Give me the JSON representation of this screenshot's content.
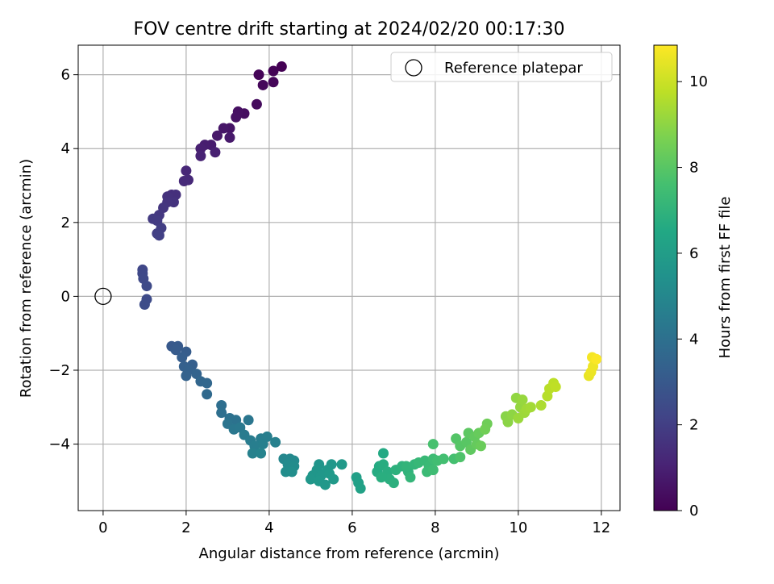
{
  "chart_data": {
    "type": "scatter",
    "title": "FOV centre drift starting at 2024/02/20 00:17:30",
    "xlabel": "Angular distance from reference (arcmin)",
    "ylabel": "Rotation from reference (arcmin)",
    "xlim": [
      -0.6,
      12.45
    ],
    "ylim": [
      -5.8,
      6.8
    ],
    "xticks": [
      0,
      2,
      4,
      6,
      8,
      10,
      12
    ],
    "yticks": [
      -4,
      -2,
      0,
      2,
      4,
      6
    ],
    "grid": true,
    "legend": {
      "position": "top-right",
      "entries": [
        "Reference platepar"
      ]
    },
    "reference_point": {
      "x": 0,
      "y": 0,
      "label": "Reference platepar"
    },
    "colorbar": {
      "label": "Hours from first FF file",
      "colormap": "viridis",
      "range": [
        0,
        10.85
      ],
      "ticks": [
        0,
        2,
        4,
        6,
        8,
        10
      ]
    },
    "point_color_variable": "hours",
    "points": [
      {
        "x": 4.3,
        "y": 6.22,
        "hours": 0.0
      },
      {
        "x": 4.1,
        "y": 6.1,
        "hours": 0.05
      },
      {
        "x": 3.75,
        "y": 6.0,
        "hours": 0.1
      },
      {
        "x": 4.1,
        "y": 5.8,
        "hours": 0.15
      },
      {
        "x": 3.85,
        "y": 5.72,
        "hours": 0.2
      },
      {
        "x": 3.7,
        "y": 5.2,
        "hours": 0.3
      },
      {
        "x": 3.4,
        "y": 4.95,
        "hours": 0.4
      },
      {
        "x": 3.25,
        "y": 5.0,
        "hours": 0.45
      },
      {
        "x": 3.2,
        "y": 4.85,
        "hours": 0.5
      },
      {
        "x": 3.05,
        "y": 4.55,
        "hours": 0.6
      },
      {
        "x": 2.9,
        "y": 4.55,
        "hours": 0.65
      },
      {
        "x": 2.75,
        "y": 4.35,
        "hours": 0.7
      },
      {
        "x": 3.05,
        "y": 4.3,
        "hours": 0.75
      },
      {
        "x": 2.6,
        "y": 4.1,
        "hours": 0.85
      },
      {
        "x": 2.45,
        "y": 4.1,
        "hours": 0.9
      },
      {
        "x": 2.35,
        "y": 4.0,
        "hours": 0.95
      },
      {
        "x": 2.7,
        "y": 3.9,
        "hours": 1.0
      },
      {
        "x": 2.35,
        "y": 3.8,
        "hours": 1.05
      },
      {
        "x": 2.0,
        "y": 3.4,
        "hours": 1.2
      },
      {
        "x": 2.05,
        "y": 3.15,
        "hours": 1.25
      },
      {
        "x": 1.95,
        "y": 3.12,
        "hours": 1.3
      },
      {
        "x": 1.65,
        "y": 2.75,
        "hours": 1.45
      },
      {
        "x": 1.75,
        "y": 2.75,
        "hours": 1.5
      },
      {
        "x": 1.55,
        "y": 2.7,
        "hours": 1.55
      },
      {
        "x": 1.7,
        "y": 2.55,
        "hours": 1.6
      },
      {
        "x": 1.55,
        "y": 2.55,
        "hours": 1.62
      },
      {
        "x": 1.45,
        "y": 2.4,
        "hours": 1.7
      },
      {
        "x": 1.35,
        "y": 2.2,
        "hours": 1.78
      },
      {
        "x": 1.2,
        "y": 2.1,
        "hours": 1.85
      },
      {
        "x": 1.3,
        "y": 2.05,
        "hours": 1.88
      },
      {
        "x": 1.4,
        "y": 1.85,
        "hours": 1.95
      },
      {
        "x": 1.3,
        "y": 1.7,
        "hours": 2.0
      },
      {
        "x": 1.35,
        "y": 1.65,
        "hours": 2.05
      },
      {
        "x": 0.95,
        "y": 0.72,
        "hours": 2.3
      },
      {
        "x": 0.95,
        "y": 0.62,
        "hours": 2.33
      },
      {
        "x": 0.97,
        "y": 0.48,
        "hours": 2.36
      },
      {
        "x": 1.05,
        "y": 0.28,
        "hours": 2.4
      },
      {
        "x": 1.05,
        "y": -0.08,
        "hours": 2.45
      },
      {
        "x": 1.0,
        "y": -0.22,
        "hours": 2.5
      },
      {
        "x": 1.65,
        "y": -1.35,
        "hours": 3.0
      },
      {
        "x": 1.8,
        "y": -1.35,
        "hours": 3.05
      },
      {
        "x": 1.75,
        "y": -1.45,
        "hours": 3.1
      },
      {
        "x": 2.0,
        "y": -1.5,
        "hours": 3.15
      },
      {
        "x": 1.9,
        "y": -1.65,
        "hours": 3.2
      },
      {
        "x": 2.15,
        "y": -1.85,
        "hours": 3.25
      },
      {
        "x": 1.95,
        "y": -1.9,
        "hours": 3.3
      },
      {
        "x": 2.05,
        "y": -2.0,
        "hours": 3.35
      },
      {
        "x": 2.0,
        "y": -2.15,
        "hours": 3.4
      },
      {
        "x": 2.25,
        "y": -2.1,
        "hours": 3.45
      },
      {
        "x": 2.35,
        "y": -2.3,
        "hours": 3.55
      },
      {
        "x": 2.5,
        "y": -2.35,
        "hours": 3.6
      },
      {
        "x": 2.5,
        "y": -2.65,
        "hours": 3.7
      },
      {
        "x": 2.85,
        "y": -2.95,
        "hours": 3.9
      },
      {
        "x": 2.85,
        "y": -3.15,
        "hours": 3.95
      },
      {
        "x": 3.05,
        "y": -3.3,
        "hours": 4.05
      },
      {
        "x": 3.2,
        "y": -3.35,
        "hours": 4.1
      },
      {
        "x": 3.0,
        "y": -3.45,
        "hours": 4.15
      },
      {
        "x": 3.5,
        "y": -3.35,
        "hours": 4.25
      },
      {
        "x": 3.15,
        "y": -3.6,
        "hours": 4.3
      },
      {
        "x": 3.3,
        "y": -3.55,
        "hours": 4.35
      },
      {
        "x": 3.4,
        "y": -3.75,
        "hours": 4.45
      },
      {
        "x": 3.55,
        "y": -3.9,
        "hours": 4.5
      },
      {
        "x": 3.8,
        "y": -3.85,
        "hours": 4.55
      },
      {
        "x": 3.65,
        "y": -4.05,
        "hours": 4.6
      },
      {
        "x": 3.95,
        "y": -3.8,
        "hours": 4.62
      },
      {
        "x": 3.85,
        "y": -4.0,
        "hours": 4.65
      },
      {
        "x": 4.15,
        "y": -3.95,
        "hours": 4.7
      },
      {
        "x": 3.6,
        "y": -4.25,
        "hours": 4.75
      },
      {
        "x": 3.8,
        "y": -4.25,
        "hours": 4.8
      },
      {
        "x": 4.35,
        "y": -4.4,
        "hours": 5.0
      },
      {
        "x": 4.5,
        "y": -4.4,
        "hours": 5.05
      },
      {
        "x": 4.6,
        "y": -4.45,
        "hours": 5.1
      },
      {
        "x": 4.45,
        "y": -4.55,
        "hours": 5.15
      },
      {
        "x": 4.6,
        "y": -4.6,
        "hours": 5.2
      },
      {
        "x": 4.4,
        "y": -4.75,
        "hours": 5.25
      },
      {
        "x": 4.55,
        "y": -4.75,
        "hours": 5.3
      },
      {
        "x": 5.2,
        "y": -4.55,
        "hours": 5.6
      },
      {
        "x": 5.5,
        "y": -4.55,
        "hours": 5.7
      },
      {
        "x": 5.75,
        "y": -4.55,
        "hours": 5.8
      },
      {
        "x": 5.15,
        "y": -4.7,
        "hours": 5.65
      },
      {
        "x": 5.4,
        "y": -4.7,
        "hours": 5.75
      },
      {
        "x": 5.05,
        "y": -4.85,
        "hours": 5.68
      },
      {
        "x": 5.25,
        "y": -4.85,
        "hours": 5.72
      },
      {
        "x": 5.45,
        "y": -4.8,
        "hours": 5.78
      },
      {
        "x": 5.0,
        "y": -4.95,
        "hours": 5.7
      },
      {
        "x": 5.2,
        "y": -5.0,
        "hours": 5.74
      },
      {
        "x": 5.35,
        "y": -5.1,
        "hours": 5.76
      },
      {
        "x": 5.55,
        "y": -4.95,
        "hours": 5.82
      },
      {
        "x": 6.1,
        "y": -4.9,
        "hours": 6.1
      },
      {
        "x": 6.15,
        "y": -5.05,
        "hours": 6.15
      },
      {
        "x": 6.2,
        "y": -5.2,
        "hours": 6.2
      },
      {
        "x": 6.75,
        "y": -4.25,
        "hours": 6.55
      },
      {
        "x": 6.65,
        "y": -4.6,
        "hours": 6.6
      },
      {
        "x": 6.6,
        "y": -4.75,
        "hours": 6.65
      },
      {
        "x": 6.75,
        "y": -4.55,
        "hours": 6.7
      },
      {
        "x": 6.85,
        "y": -4.75,
        "hours": 6.75
      },
      {
        "x": 6.9,
        "y": -4.95,
        "hours": 6.8
      },
      {
        "x": 6.7,
        "y": -4.9,
        "hours": 6.78
      },
      {
        "x": 7.0,
        "y": -5.05,
        "hours": 6.85
      },
      {
        "x": 7.05,
        "y": -4.7,
        "hours": 6.9
      },
      {
        "x": 7.2,
        "y": -4.6,
        "hours": 6.95
      },
      {
        "x": 7.35,
        "y": -4.75,
        "hours": 7.0
      },
      {
        "x": 7.3,
        "y": -4.6,
        "hours": 7.05
      },
      {
        "x": 7.5,
        "y": -4.55,
        "hours": 7.1
      },
      {
        "x": 7.4,
        "y": -4.9,
        "hours": 7.12
      },
      {
        "x": 7.6,
        "y": -4.5,
        "hours": 7.2
      },
      {
        "x": 7.75,
        "y": -4.45,
        "hours": 7.25
      },
      {
        "x": 7.85,
        "y": -4.6,
        "hours": 7.3
      },
      {
        "x": 7.95,
        "y": -4.4,
        "hours": 7.4
      },
      {
        "x": 7.8,
        "y": -4.75,
        "hours": 7.35
      },
      {
        "x": 7.95,
        "y": -4.7,
        "hours": 7.42
      },
      {
        "x": 8.05,
        "y": -4.45,
        "hours": 7.5
      },
      {
        "x": 8.2,
        "y": -4.4,
        "hours": 7.55
      },
      {
        "x": 8.45,
        "y": -4.4,
        "hours": 7.6
      },
      {
        "x": 7.95,
        "y": -4.0,
        "hours": 7.65
      },
      {
        "x": 8.6,
        "y": -4.35,
        "hours": 7.8
      },
      {
        "x": 8.5,
        "y": -3.85,
        "hours": 7.9
      },
      {
        "x": 8.6,
        "y": -4.05,
        "hours": 7.95
      },
      {
        "x": 8.75,
        "y": -3.95,
        "hours": 8.0
      },
      {
        "x": 8.8,
        "y": -3.7,
        "hours": 8.1
      },
      {
        "x": 8.85,
        "y": -4.15,
        "hours": 8.15
      },
      {
        "x": 8.95,
        "y": -3.8,
        "hours": 8.2
      },
      {
        "x": 9.0,
        "y": -4.0,
        "hours": 8.25
      },
      {
        "x": 9.05,
        "y": -3.7,
        "hours": 8.3
      },
      {
        "x": 9.1,
        "y": -4.05,
        "hours": 8.35
      },
      {
        "x": 9.25,
        "y": -3.45,
        "hours": 8.45
      },
      {
        "x": 9.2,
        "y": -3.6,
        "hours": 8.5
      },
      {
        "x": 9.7,
        "y": -3.25,
        "hours": 8.9
      },
      {
        "x": 9.75,
        "y": -3.4,
        "hours": 8.95
      },
      {
        "x": 9.85,
        "y": -3.2,
        "hours": 9.0
      },
      {
        "x": 9.95,
        "y": -2.75,
        "hours": 9.05
      },
      {
        "x": 10.05,
        "y": -3.0,
        "hours": 9.1
      },
      {
        "x": 10.1,
        "y": -2.8,
        "hours": 9.15
      },
      {
        "x": 10.0,
        "y": -3.3,
        "hours": 9.2
      },
      {
        "x": 10.15,
        "y": -3.15,
        "hours": 9.25
      },
      {
        "x": 10.2,
        "y": -3.05,
        "hours": 9.3
      },
      {
        "x": 10.3,
        "y": -3.0,
        "hours": 9.35
      },
      {
        "x": 10.55,
        "y": -2.95,
        "hours": 9.5
      },
      {
        "x": 10.7,
        "y": -2.7,
        "hours": 9.65
      },
      {
        "x": 10.75,
        "y": -2.5,
        "hours": 9.7
      },
      {
        "x": 10.85,
        "y": -2.35,
        "hours": 9.75
      },
      {
        "x": 10.9,
        "y": -2.45,
        "hours": 9.8
      },
      {
        "x": 11.7,
        "y": -2.15,
        "hours": 10.5
      },
      {
        "x": 11.75,
        "y": -2.05,
        "hours": 10.55
      },
      {
        "x": 11.8,
        "y": -1.9,
        "hours": 10.6
      },
      {
        "x": 11.78,
        "y": -1.65,
        "hours": 10.7
      },
      {
        "x": 11.88,
        "y": -1.7,
        "hours": 10.8
      }
    ]
  }
}
